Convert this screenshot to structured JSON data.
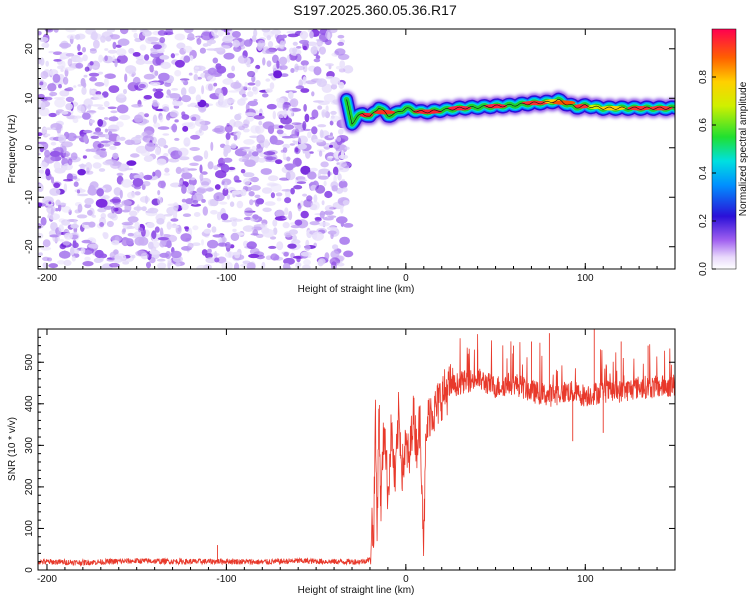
{
  "title": "S197.2025.360.05.36.R17",
  "colors": {
    "snr_line": "#e8392b",
    "scatter_dark": "#6a1ad8",
    "scatter_light": "#d4c2f5",
    "axis": "#000000"
  },
  "chart_data": [
    {
      "type": "heatmap",
      "name": "spectrogram",
      "xlabel": "Height of straight line (km)",
      "ylabel": "Frequency (Hz)",
      "xlim": [
        -205,
        150
      ],
      "ylim": [
        -24.5,
        24
      ],
      "xticks": [
        -200,
        -100,
        0,
        100
      ],
      "yticks": [
        -20,
        -10,
        0,
        10,
        20
      ],
      "xtick_labels": [
        "-200",
        "-100",
        "0",
        "100"
      ],
      "ytick_labels": [
        "-20",
        "-10",
        "0",
        "10",
        "20"
      ],
      "noise_region": {
        "x_start": -205,
        "x_end": -32
      },
      "ridge": {
        "x": [
          -33,
          -30,
          -27,
          -24,
          -20,
          -15,
          -10,
          -5,
          0,
          5,
          10,
          20,
          30,
          40,
          50,
          60,
          70,
          80,
          85,
          90,
          95,
          100,
          110,
          120,
          130,
          140,
          150
        ],
        "freq": [
          9.5,
          5.0,
          6.2,
          7.0,
          6.2,
          8.2,
          6.5,
          7.0,
          8.0,
          7.5,
          7.2,
          7.6,
          8.0,
          8.2,
          8.4,
          8.6,
          9.0,
          9.2,
          9.6,
          8.8,
          8.2,
          8.5,
          8.0,
          8.0,
          8.0,
          8.0,
          8.0
        ]
      },
      "colorbar": {
        "label": "Normalized spectral amplitude",
        "range": [
          0.0,
          1.0
        ],
        "ticks": [
          0.0,
          0.2,
          0.4,
          0.6,
          0.8
        ],
        "tick_labels": [
          "0.0",
          "0.2",
          "0.4",
          "0.6",
          "0.8"
        ]
      }
    },
    {
      "type": "line",
      "name": "snr",
      "xlabel": "Height of straight line (km)",
      "ylabel": "SNR (10 * v/v)",
      "xlim": [
        -205,
        150
      ],
      "ylim": [
        0,
        580
      ],
      "xticks": [
        -200,
        -100,
        0,
        100
      ],
      "yticks": [
        0,
        100,
        200,
        300,
        400,
        500
      ],
      "xtick_labels": [
        "-200",
        "-100",
        "0",
        "100"
      ],
      "ytick_labels": [
        "0",
        "100",
        "200",
        "300",
        "400",
        "500"
      ],
      "series": [
        {
          "name": "SNR",
          "x": [
            -205,
            -180,
            -150,
            -120,
            -100,
            -80,
            -60,
            -40,
            -25,
            -20,
            -19,
            -18,
            -17,
            -16,
            -15,
            -14,
            -12,
            -10,
            -8,
            -6,
            -4,
            -2,
            0,
            2,
            4,
            6,
            8,
            10,
            11,
            12,
            14,
            16,
            20,
            25,
            30,
            40,
            50,
            60,
            70,
            80,
            90,
            100,
            110,
            120,
            130,
            140,
            150
          ],
          "values": [
            20,
            18,
            22,
            20,
            21,
            19,
            22,
            20,
            20,
            25,
            120,
            60,
            380,
            90,
            420,
            150,
            360,
            180,
            340,
            200,
            380,
            240,
            300,
            260,
            380,
            300,
            360,
            60,
            280,
            350,
            390,
            380,
            420,
            440,
            450,
            460,
            440,
            450,
            430,
            420,
            430,
            420,
            430,
            430,
            440,
            440,
            445
          ]
        }
      ],
      "spikes": {
        "x": [
          -105,
          40,
          60,
          70,
          80,
          93,
          105,
          110,
          120,
          135
        ],
        "values": [
          60,
          530,
          540,
          550,
          570,
          310,
          580,
          330,
          550,
          540
        ]
      }
    }
  ]
}
